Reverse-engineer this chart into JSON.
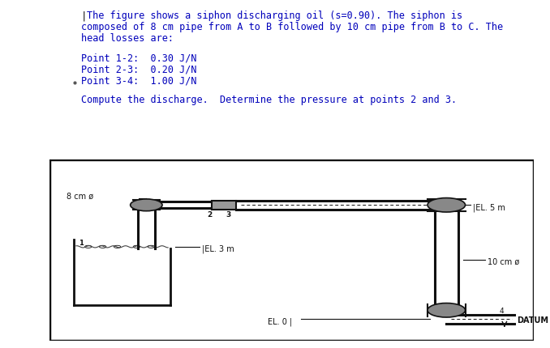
{
  "title_lines": [
    "The figure shows a siphon discharging oil (s=0.90). The siphon is",
    "composed of 8 cm pipe from A to B followed by 10 cm pipe from B to C. The",
    "head losses are:"
  ],
  "blank_line": "",
  "point_lines": [
    "Point 1-2:  0.30 J/N",
    "Point 2-3:  0.20 J/N",
    "Point 3-4:  1.00 J/N"
  ],
  "compute_line": "Compute the discharge.  Determine the pressure at points 2 and 3.",
  "text_color": "#0000bb",
  "bg_color": "#ffffff",
  "diagram_bg": "#ccc8be",
  "pipe_color": "#111111",
  "pipe_lw": 2.2,
  "label_8cm": "8 cm ø",
  "label_10cm": "10 cm ø",
  "label_EL5": "|EL. 5 m",
  "label_EL3": "|EL. 3 m",
  "label_EL0": "EL. 0 |",
  "label_DATUM": "DATUM",
  "label_pt1": "1",
  "label_pt2": "2",
  "label_pt3": "3",
  "label_pt4": "4"
}
